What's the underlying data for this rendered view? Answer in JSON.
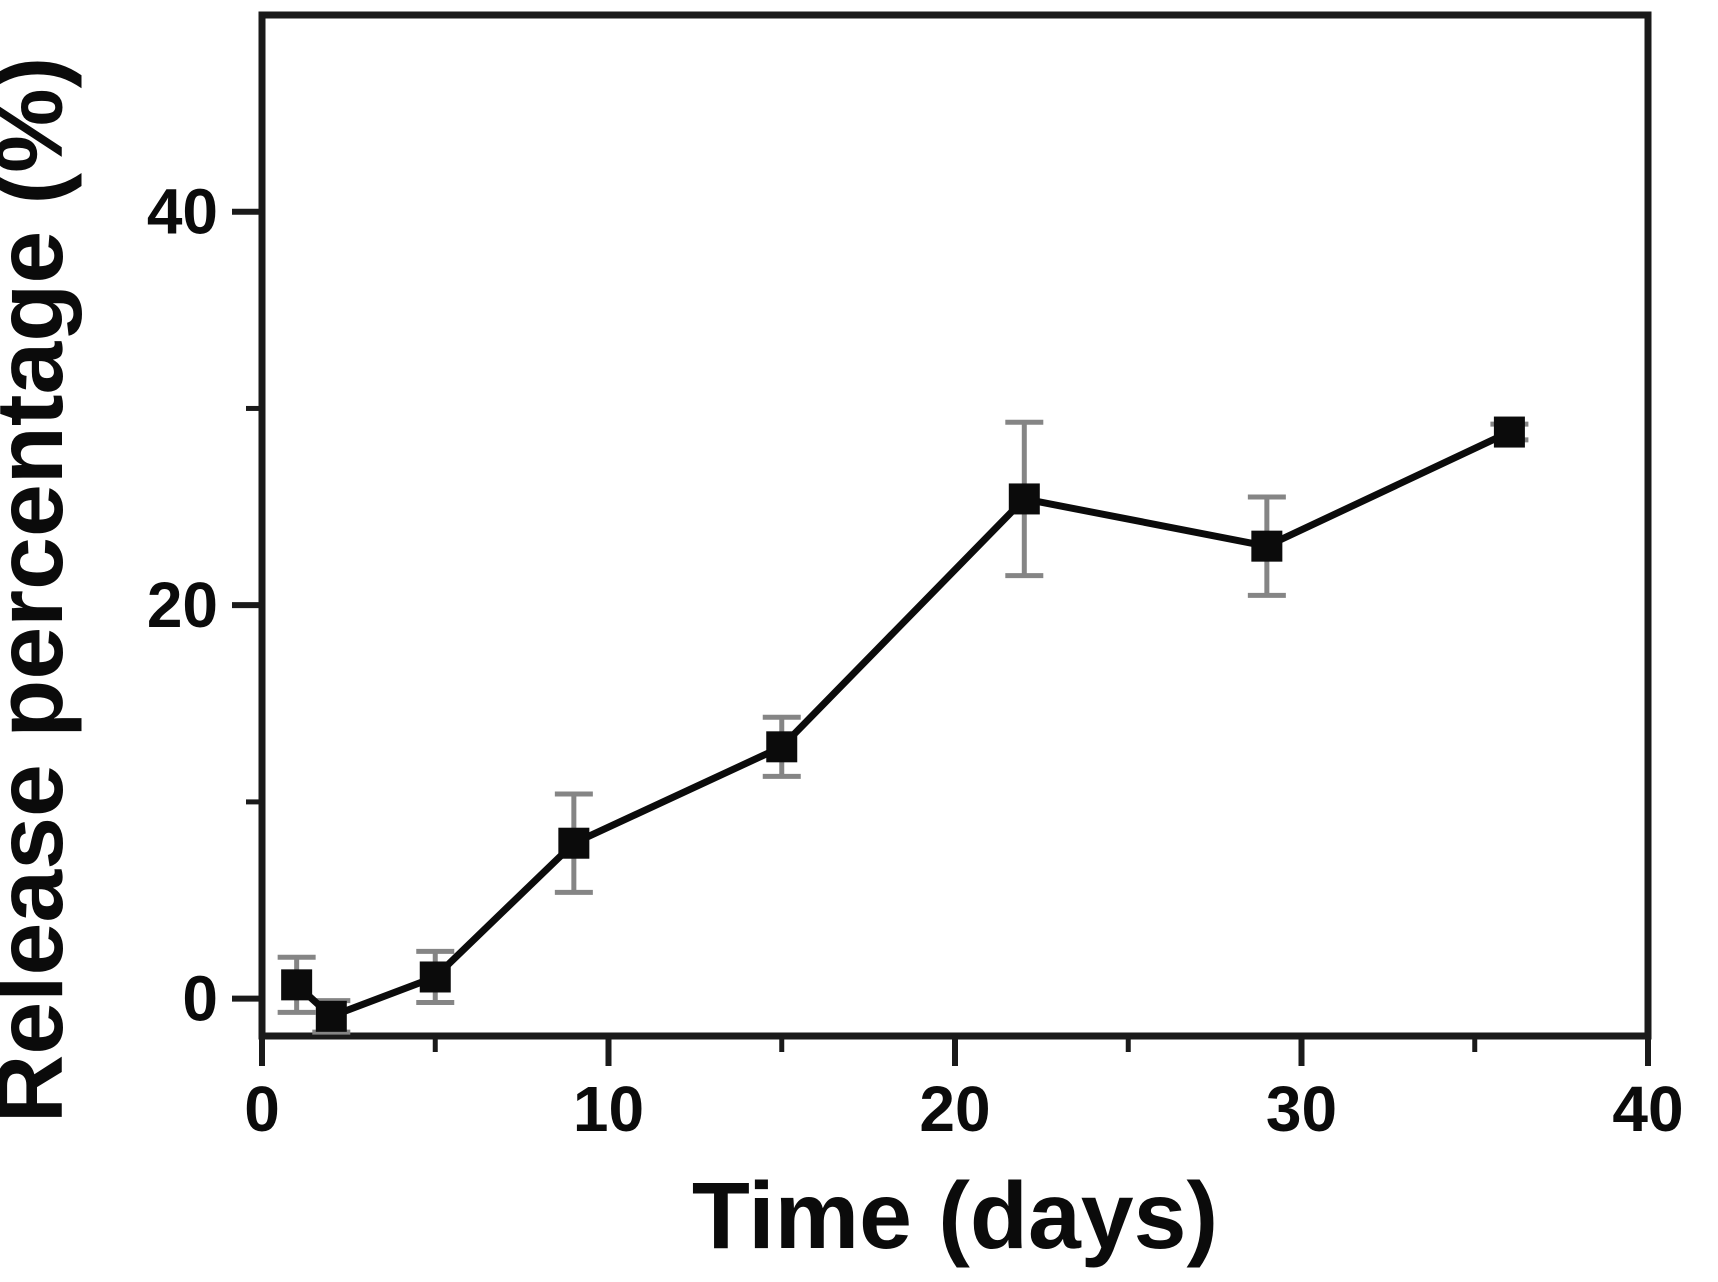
{
  "chart_data": {
    "type": "line",
    "title": "",
    "xlabel": "Time (days)",
    "ylabel": "Release percentage (%)",
    "xlim": [
      0,
      40
    ],
    "ylim": [
      -1.9,
      50
    ],
    "x_major_ticks": [
      0,
      10,
      20,
      30,
      40
    ],
    "x_minor_ticks": [
      5,
      15,
      25,
      35
    ],
    "y_major_ticks": [
      0,
      20,
      40
    ],
    "y_minor_ticks": [
      10,
      30
    ],
    "grid": false,
    "legend": false,
    "frame": "box",
    "colors": {
      "line": "#0b0b0b",
      "marker": "#0b0b0b",
      "error_bar": "#858585",
      "axis": "#1a1a1a"
    },
    "series": [
      {
        "name": "release-percentage",
        "marker": "square",
        "points": [
          {
            "x": 1,
            "y": 0.7,
            "err": 1.4
          },
          {
            "x": 2,
            "y": -0.9,
            "err": 0.8
          },
          {
            "x": 5,
            "y": 1.1,
            "err": 1.3
          },
          {
            "x": 9,
            "y": 7.9,
            "err": 2.5
          },
          {
            "x": 15,
            "y": 12.8,
            "err": 1.5
          },
          {
            "x": 22,
            "y": 25.4,
            "err": 3.9
          },
          {
            "x": 29,
            "y": 23.0,
            "err": 2.5
          },
          {
            "x": 36,
            "y": 28.8,
            "err": 0.4
          }
        ]
      }
    ]
  }
}
